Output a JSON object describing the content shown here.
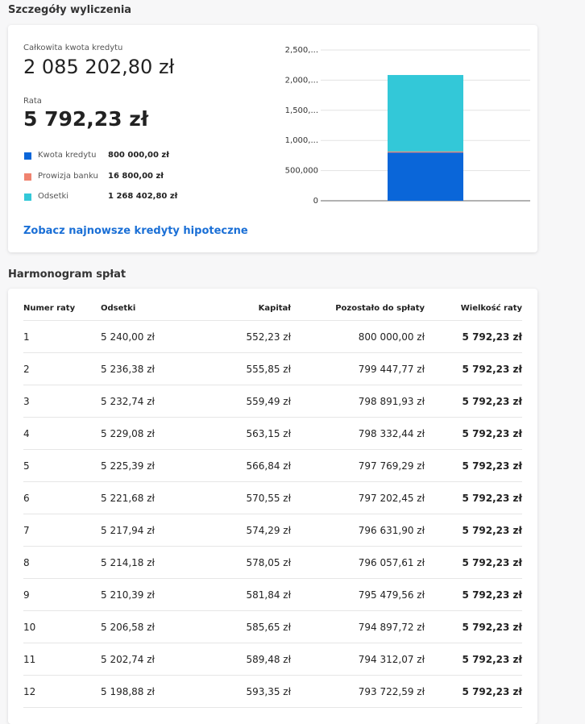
{
  "heading": "Szczegóły wyliczenia",
  "summary": {
    "total_label": "Całkowita kwota kredytu",
    "total": "2 085 202,80 zł",
    "rate_label": "Rata",
    "rate": "5 792,23 zł",
    "link": "Zobacz najnowsze kredyty hipoteczne"
  },
  "chart_data": {
    "type": "bar",
    "stacked": true,
    "categories": [
      null
    ],
    "series": [
      {
        "name": "Kwota kredytu",
        "color": "#0a66d9",
        "values": [
          800000
        ],
        "value_labels": [
          "800 000,00 zł"
        ]
      },
      {
        "name": "Prowizja banku",
        "color": "#f0836f",
        "values": [
          16800
        ],
        "value_labels": [
          "16 800,00 zł"
        ]
      },
      {
        "name": "Odsetki",
        "color": "#33c8d8",
        "values": [
          1268402.8
        ],
        "value_labels": [
          "1 268 402,80 zł"
        ]
      }
    ],
    "ylim": [
      0,
      2500000
    ],
    "yticks": [
      0,
      {
        "value": 500000,
        "label": "500,000"
      },
      {
        "value": 1000000,
        "label": "1,000,..."
      },
      {
        "value": 1500000,
        "label": "1,500,..."
      },
      {
        "value": 2000000,
        "label": "2,000,..."
      },
      {
        "value": 2500000,
        "label": "2,500,..."
      }
    ],
    "grid": true
  },
  "schedule_heading": "Harmonogram spłat",
  "table": {
    "header": [
      "Numer raty",
      "Odsetki",
      "Kapitał",
      "Pozostało do spłaty",
      "Wielkość raty"
    ],
    "rows": [
      [
        "1",
        "5 240,00 zł",
        "552,23 zł",
        "800 000,00 zł",
        "5 792,23 zł"
      ],
      [
        "2",
        "5 236,38 zł",
        "555,85 zł",
        "799 447,77 zł",
        "5 792,23 zł"
      ],
      [
        "3",
        "5 232,74 zł",
        "559,49 zł",
        "798 891,93 zł",
        "5 792,23 zł"
      ],
      [
        "4",
        "5 229,08 zł",
        "563,15 zł",
        "798 332,44 zł",
        "5 792,23 zł"
      ],
      [
        "5",
        "5 225,39 zł",
        "566,84 zł",
        "797 769,29 zł",
        "5 792,23 zł"
      ],
      [
        "6",
        "5 221,68 zł",
        "570,55 zł",
        "797 202,45 zł",
        "5 792,23 zł"
      ],
      [
        "7",
        "5 217,94 zł",
        "574,29 zł",
        "796 631,90 zł",
        "5 792,23 zł"
      ],
      [
        "8",
        "5 214,18 zł",
        "578,05 zł",
        "796 057,61 zł",
        "5 792,23 zł"
      ],
      [
        "9",
        "5 210,39 zł",
        "581,84 zł",
        "795 479,56 zł",
        "5 792,23 zł"
      ],
      [
        "10",
        "5 206,58 zł",
        "585,65 zł",
        "794 897,72 zł",
        "5 792,23 zł"
      ],
      [
        "11",
        "5 202,74 zł",
        "589,48 zł",
        "794 312,07 zł",
        "5 792,23 zł"
      ],
      [
        "12",
        "5 198,88 zł",
        "593,35 zł",
        "793 722,59 zł",
        "5 792,23 zł"
      ]
    ]
  }
}
